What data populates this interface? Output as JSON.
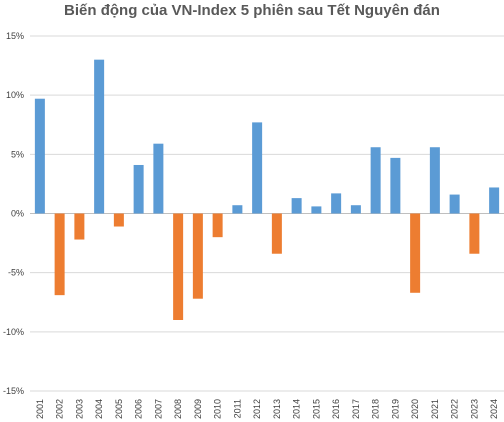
{
  "chart_data": {
    "type": "bar",
    "title": "Biến động của VN-Index 5 phiên sau Tết Nguyên đán",
    "xlabel": "",
    "ylabel": "",
    "categories": [
      "2001",
      "2002",
      "2003",
      "2004",
      "2005",
      "2006",
      "2007",
      "2008",
      "2009",
      "2010",
      "2011",
      "2012",
      "2013",
      "2014",
      "2015",
      "2016",
      "2017",
      "2018",
      "2019",
      "2020",
      "2021",
      "2022",
      "2023",
      "2024"
    ],
    "values": [
      9.7,
      -6.9,
      -2.2,
      13.0,
      -1.1,
      4.1,
      5.9,
      -9.0,
      -7.2,
      -2.0,
      0.7,
      7.7,
      -3.4,
      1.3,
      0.6,
      1.7,
      0.7,
      5.6,
      4.7,
      -6.7,
      5.6,
      1.6,
      -3.4,
      2.2
    ],
    "ylim": [
      -15,
      15
    ],
    "yticks": [
      15,
      10,
      5,
      0,
      -5,
      -10,
      -15
    ],
    "ytick_labels": [
      "15%",
      "10%",
      "5%",
      "0%",
      "-5%",
      "-10%",
      "-15%"
    ],
    "grid": true,
    "legend": "none",
    "colors": {
      "positive": "#5b9bd5",
      "negative": "#ed7d31",
      "grid": "#d9d9d9",
      "axis": "#bfbfbf"
    }
  }
}
